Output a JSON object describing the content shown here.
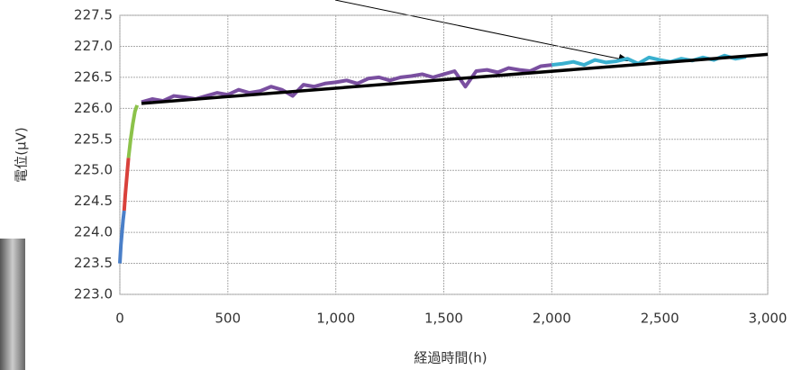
{
  "chart_data": {
    "type": "line",
    "x_label": "経過時間(h)",
    "y_label": "電位(μV)",
    "xlim": [
      0,
      3000
    ],
    "xticks": [
      0,
      500,
      {
        "value": 1000,
        "label": "1,000"
      },
      {
        "value": 1500,
        "label": "1,500"
      },
      {
        "value": 2000,
        "label": "2,000"
      },
      {
        "value": 2500,
        "label": "2,500"
      },
      {
        "value": 3000,
        "label": "3,000"
      }
    ],
    "ylim": [
      223,
      227.5
    ],
    "yticks": [
      {
        "value": 223,
        "label": "223.0"
      },
      223.5,
      {
        "value": 224,
        "label": "224.0"
      },
      224.5,
      {
        "value": 225,
        "label": "225.0"
      },
      225.5,
      {
        "value": 226,
        "label": "226.0"
      },
      226.5,
      {
        "value": 227,
        "label": "227.0"
      },
      227.5
    ],
    "grid": true,
    "series": [
      {
        "color": "#4a7fc8",
        "x": [
          0,
          5,
          10,
          15,
          20
        ],
        "values": [
          223.5,
          223.8,
          224.0,
          224.2,
          224.35
        ]
      },
      {
        "color": "#d9413b",
        "x": [
          20,
          25,
          30,
          35,
          40
        ],
        "values": [
          224.35,
          224.6,
          224.8,
          225.0,
          225.2
        ]
      },
      {
        "color": "#8cc24a",
        "x": [
          40,
          50,
          60,
          70,
          80
        ],
        "values": [
          225.2,
          225.5,
          225.75,
          225.95,
          226.05
        ]
      },
      {
        "color": "#7a4fa0",
        "x": [
          100,
          150,
          200,
          250,
          300,
          350,
          400,
          450,
          500,
          550,
          600,
          650,
          700,
          750,
          800,
          850,
          900,
          950,
          1000,
          1050,
          1100,
          1150,
          1200,
          1250,
          1300,
          1350,
          1400,
          1450,
          1500,
          1550,
          1600,
          1650,
          1700,
          1750,
          1800,
          1850,
          1900,
          1950,
          2000
        ],
        "values": [
          226.1,
          226.15,
          226.12,
          226.2,
          226.18,
          226.15,
          226.2,
          226.25,
          226.22,
          226.3,
          226.25,
          226.28,
          226.35,
          226.3,
          226.2,
          226.38,
          226.35,
          226.4,
          226.42,
          226.45,
          226.4,
          226.48,
          226.5,
          226.45,
          226.5,
          226.52,
          226.55,
          226.5,
          226.55,
          226.6,
          226.35,
          226.6,
          226.62,
          226.58,
          226.65,
          226.62,
          226.6,
          226.68,
          226.7
        ]
      },
      {
        "color": "#3ab0cf",
        "x": [
          2000,
          2050,
          2100,
          2150,
          2200,
          2250,
          2300,
          2350,
          2400,
          2450,
          2500,
          2550,
          2600,
          2650,
          2700,
          2750,
          2800,
          2850,
          2900
        ],
        "values": [
          226.7,
          226.72,
          226.75,
          226.7,
          226.78,
          226.74,
          226.76,
          226.8,
          226.72,
          226.82,
          226.78,
          226.75,
          226.8,
          226.77,
          226.82,
          226.78,
          226.85,
          226.8,
          226.83
        ]
      }
    ],
    "trend": {
      "color": "#000000",
      "x": [
        100,
        3000
      ],
      "values": [
        226.08,
        226.87
      ]
    }
  }
}
